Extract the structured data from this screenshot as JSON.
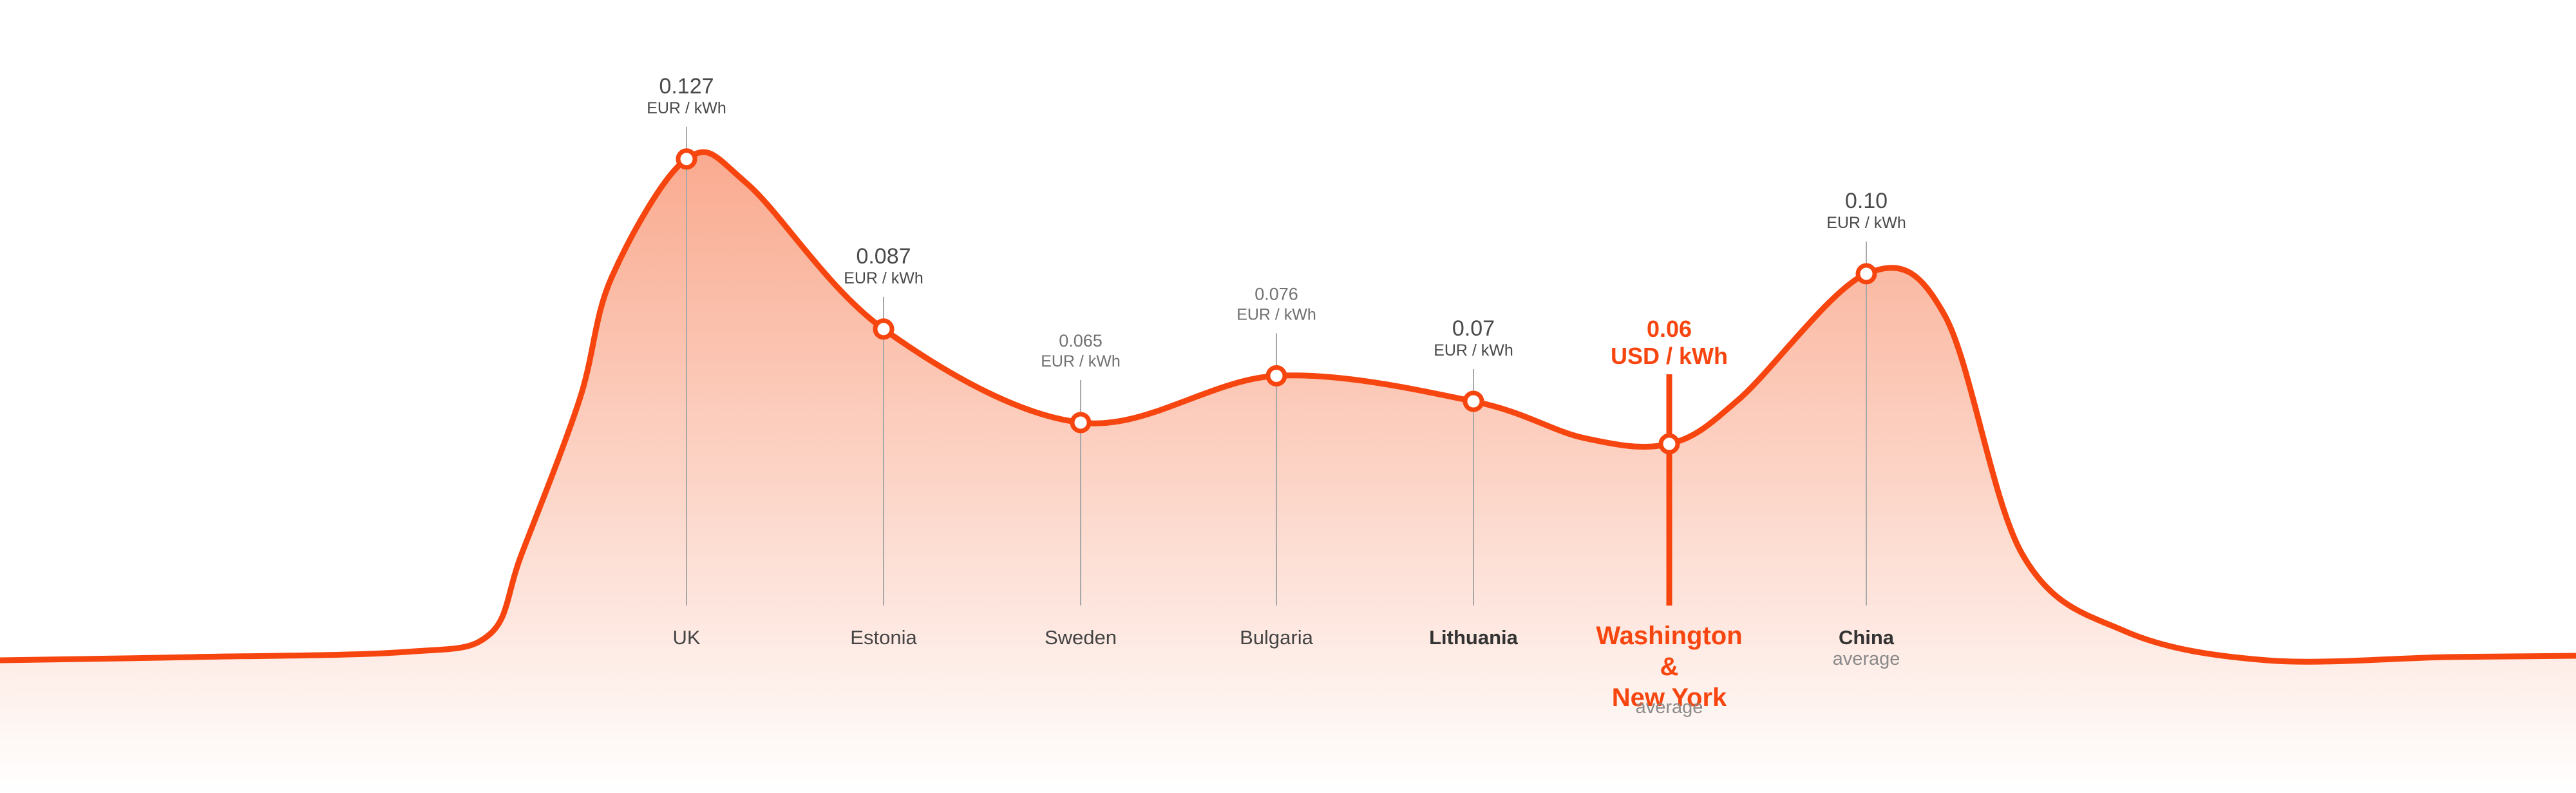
{
  "colors": {
    "accent": "#f7450f",
    "fill_top": "#f9a68a",
    "guide": "#a8a8a8",
    "text": "#4a4a4a"
  },
  "chart_data": {
    "type": "area",
    "categories": [
      "UK",
      "Estonia",
      "Sweden",
      "Bulgaria",
      "Lithuania",
      "Washington & New York",
      "China"
    ],
    "points": [
      {
        "label": "UK",
        "sub": "",
        "value": 0.127,
        "value_text": "0.127",
        "unit": "EUR / kWh",
        "style": "normal",
        "label_bold": false
      },
      {
        "label": "Estonia",
        "sub": "",
        "value": 0.087,
        "value_text": "0.087",
        "unit": "EUR / kWh",
        "style": "normal",
        "label_bold": false
      },
      {
        "label": "Sweden",
        "sub": "",
        "value": 0.065,
        "value_text": "0.065",
        "unit": "EUR / kWh",
        "style": "small",
        "label_bold": false
      },
      {
        "label": "Bulgaria",
        "sub": "",
        "value": 0.076,
        "value_text": "0.076",
        "unit": "EUR / kWh",
        "style": "small",
        "label_bold": false
      },
      {
        "label": "Lithuania",
        "sub": "",
        "value": 0.07,
        "value_text": "0.07",
        "unit": "EUR / kWh",
        "style": "normal",
        "label_bold": true
      },
      {
        "label_lines": [
          "Washington",
          "&",
          "New York"
        ],
        "sub": "average",
        "value": 0.06,
        "value_text": "0.06",
        "unit": "USD / kWh",
        "style": "highlight",
        "label_bold": true
      },
      {
        "label": "China",
        "sub": "average",
        "value": 0.1,
        "value_text": "0.10",
        "unit": "EUR / kWh",
        "style": "normal",
        "label_bold": true
      }
    ],
    "xlabel": "",
    "ylabel": "",
    "grid": false,
    "legend": "none"
  }
}
